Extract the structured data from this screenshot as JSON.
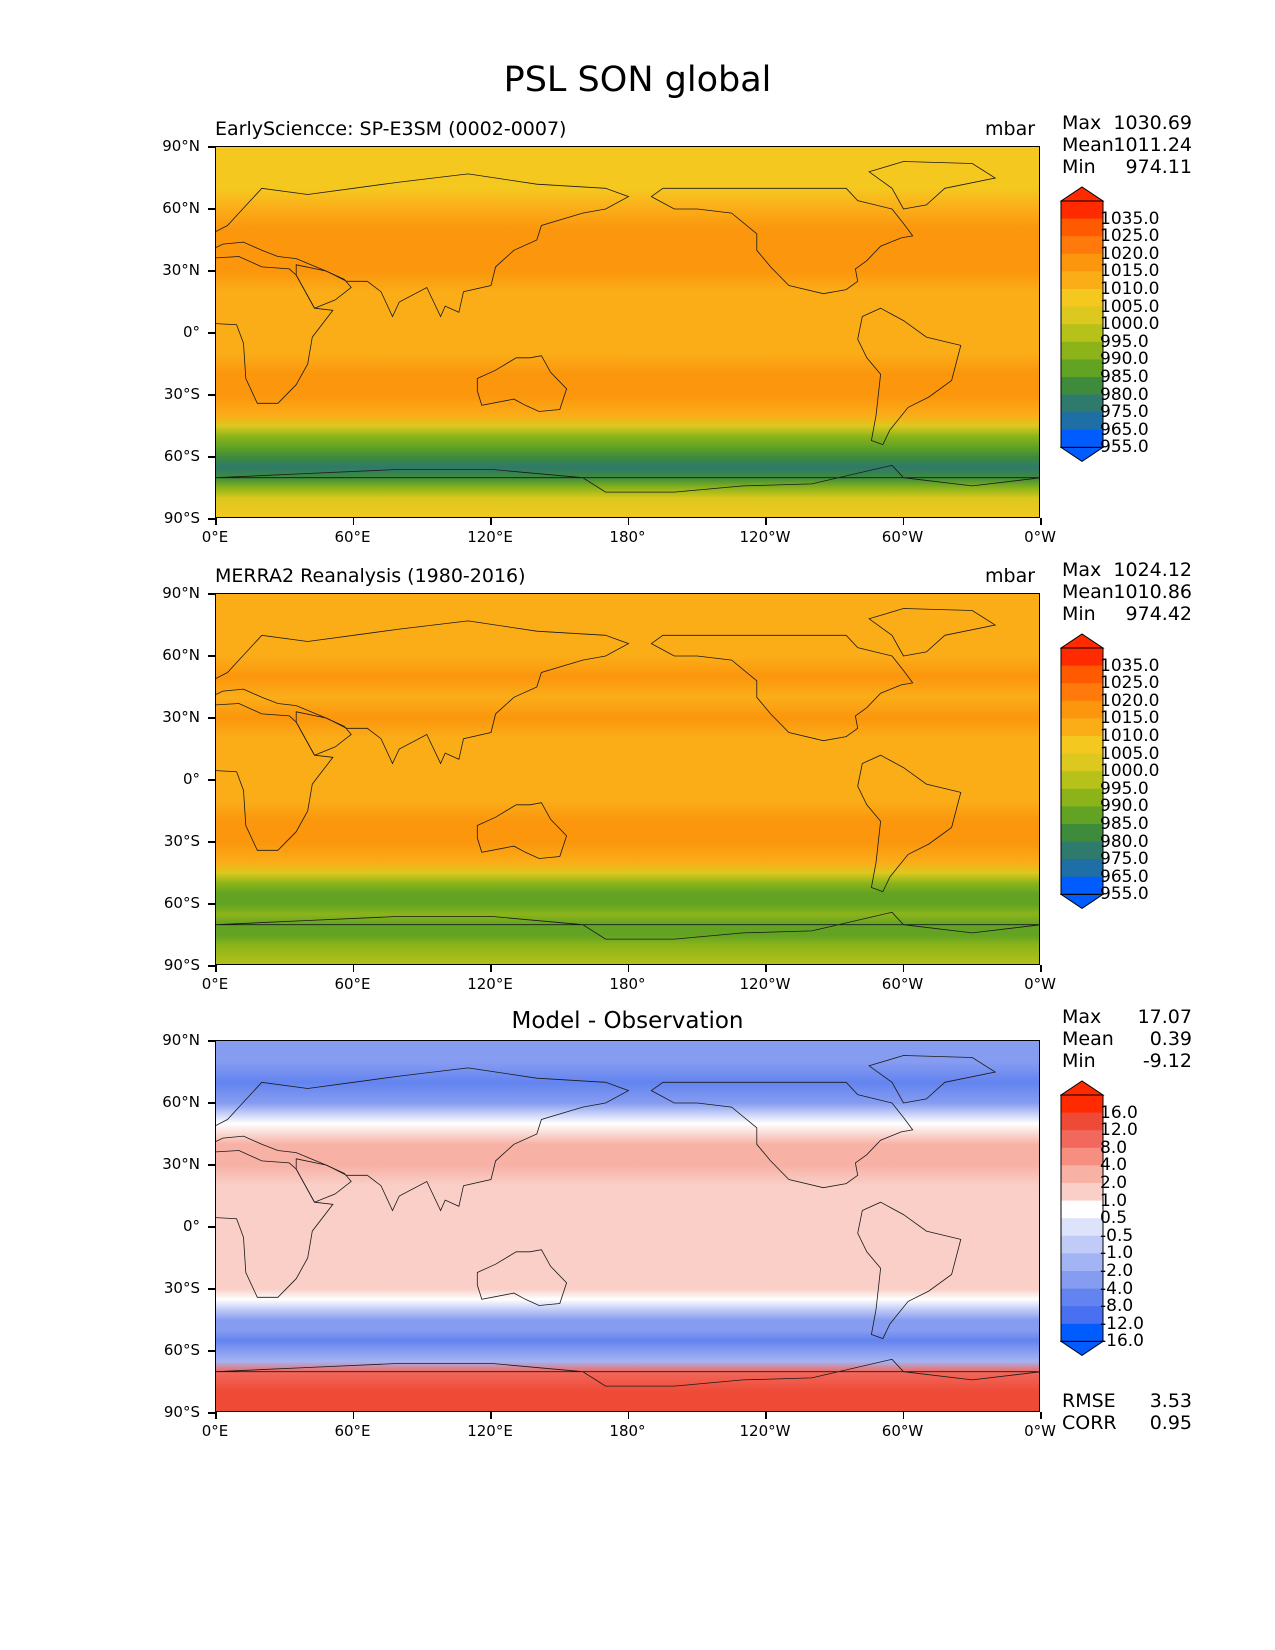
{
  "figure_title": "PSL SON global",
  "x_ticks": [
    "0°E",
    "60°E",
    "120°E",
    "180°",
    "120°W",
    "60°W",
    "0°W"
  ],
  "y_ticks": [
    "90°N",
    "60°N",
    "30°N",
    "0°",
    "30°S",
    "60°S",
    "90°S"
  ],
  "chart_data": [
    {
      "type": "heatmap",
      "title": "EarlySciencce: SP-E3SM (0002-0007)",
      "units": "mbar",
      "stats": {
        "max": "1030.69",
        "mean": "1011.24",
        "min": "974.11"
      },
      "colorbar_levels": [
        "1035.0",
        "1025.0",
        "1020.0",
        "1015.0",
        "1010.0",
        "1005.0",
        "1000.0",
        "995.0",
        "990.0",
        "985.0",
        "980.0",
        "975.0",
        "965.0",
        "955.0"
      ],
      "colors": [
        "#ff2a00",
        "#ff5a00",
        "#ff7a0a",
        "#fb960d",
        "#fbad18",
        "#f5c820",
        "#dcc81e",
        "#b6c21a",
        "#8cb41a",
        "#62a324",
        "#3e8b3c",
        "#2e7a6c",
        "#1e6fa6",
        "#005cff"
      ],
      "band_levels_by_latitude": [
        {
          "lat": 90,
          "level": 5
        },
        {
          "lat": 80,
          "level": 5
        },
        {
          "lat": 70,
          "level": 5
        },
        {
          "lat": 60,
          "level": 4
        },
        {
          "lat": 50,
          "level": 3
        },
        {
          "lat": 40,
          "level": 3
        },
        {
          "lat": 30,
          "level": 3
        },
        {
          "lat": 20,
          "level": 4
        },
        {
          "lat": 10,
          "level": 4
        },
        {
          "lat": 0,
          "level": 4
        },
        {
          "lat": -10,
          "level": 4
        },
        {
          "lat": -20,
          "level": 3
        },
        {
          "lat": -30,
          "level": 3
        },
        {
          "lat": -40,
          "level": 4
        },
        {
          "lat": -45,
          "level": 6
        },
        {
          "lat": -50,
          "level": 8
        },
        {
          "lat": -55,
          "level": 9
        },
        {
          "lat": -60,
          "level": 10
        },
        {
          "lat": -65,
          "level": 11
        },
        {
          "lat": -70,
          "level": 10
        },
        {
          "lat": -75,
          "level": 8
        },
        {
          "lat": -80,
          "level": 6
        },
        {
          "lat": -90,
          "level": 5
        }
      ]
    },
    {
      "type": "heatmap",
      "title": "MERRA2 Reanalysis (1980-2016)",
      "units": "mbar",
      "stats": {
        "max": "1024.12",
        "mean": "1010.86",
        "min": "974.42"
      },
      "colorbar_levels": [
        "1035.0",
        "1025.0",
        "1020.0",
        "1015.0",
        "1010.0",
        "1005.0",
        "1000.0",
        "995.0",
        "990.0",
        "985.0",
        "980.0",
        "975.0",
        "965.0",
        "955.0"
      ],
      "colors": [
        "#ff2a00",
        "#ff5a00",
        "#ff7a0a",
        "#fb960d",
        "#fbad18",
        "#f5c820",
        "#dcc81e",
        "#b6c21a",
        "#8cb41a",
        "#62a324",
        "#3e8b3c",
        "#2e7a6c",
        "#1e6fa6",
        "#005cff"
      ],
      "band_levels_by_latitude": [
        {
          "lat": 90,
          "level": 4
        },
        {
          "lat": 80,
          "level": 4
        },
        {
          "lat": 70,
          "level": 4
        },
        {
          "lat": 60,
          "level": 4
        },
        {
          "lat": 50,
          "level": 3
        },
        {
          "lat": 40,
          "level": 4
        },
        {
          "lat": 30,
          "level": 3
        },
        {
          "lat": 20,
          "level": 4
        },
        {
          "lat": 10,
          "level": 4
        },
        {
          "lat": 0,
          "level": 4
        },
        {
          "lat": -10,
          "level": 4
        },
        {
          "lat": -20,
          "level": 3
        },
        {
          "lat": -30,
          "level": 3
        },
        {
          "lat": -40,
          "level": 4
        },
        {
          "lat": -45,
          "level": 6
        },
        {
          "lat": -50,
          "level": 8
        },
        {
          "lat": -55,
          "level": 9
        },
        {
          "lat": -60,
          "level": 9
        },
        {
          "lat": -65,
          "level": 8
        },
        {
          "lat": -70,
          "level": 9
        },
        {
          "lat": -75,
          "level": 9
        },
        {
          "lat": -80,
          "level": 8
        },
        {
          "lat": -90,
          "level": 7
        }
      ]
    },
    {
      "type": "heatmap",
      "title": "Model - Observation",
      "units": "",
      "stats": {
        "max": "17.07",
        "mean": "0.39",
        "min": "-9.12",
        "rmse": "3.53",
        "corr": "0.95"
      },
      "colorbar_levels": [
        "16.0",
        "12.0",
        "8.0",
        "4.0",
        "2.0",
        "1.0",
        "0.5",
        "-0.5",
        "-1.0",
        "-2.0",
        "-4.0",
        "-8.0",
        "-12.0",
        "-16.0"
      ],
      "colors": [
        "#ff2a00",
        "#ee4a36",
        "#f2685c",
        "#f68f80",
        "#f7b1a5",
        "#f9cfc7",
        "#ffffff",
        "#dde3fa",
        "#c0cbf7",
        "#a3b4f4",
        "#869cf1",
        "#6384f0",
        "#4a70f2",
        "#005cff"
      ],
      "band_levels_by_latitude": [
        {
          "lat": 90,
          "level": 10
        },
        {
          "lat": 80,
          "level": 10
        },
        {
          "lat": 70,
          "level": 11
        },
        {
          "lat": 60,
          "level": 10
        },
        {
          "lat": 50,
          "level": 6
        },
        {
          "lat": 40,
          "level": 4
        },
        {
          "lat": 30,
          "level": 4
        },
        {
          "lat": 20,
          "level": 5
        },
        {
          "lat": 10,
          "level": 5
        },
        {
          "lat": 0,
          "level": 5
        },
        {
          "lat": -10,
          "level": 5
        },
        {
          "lat": -20,
          "level": 5
        },
        {
          "lat": -30,
          "level": 5
        },
        {
          "lat": -35,
          "level": 6
        },
        {
          "lat": -40,
          "level": 8
        },
        {
          "lat": -45,
          "level": 10
        },
        {
          "lat": -50,
          "level": 10
        },
        {
          "lat": -55,
          "level": 11
        },
        {
          "lat": -60,
          "level": 10
        },
        {
          "lat": -65,
          "level": 9
        },
        {
          "lat": -70,
          "level": 2
        },
        {
          "lat": -80,
          "level": 1
        },
        {
          "lat": -90,
          "level": 1
        }
      ]
    }
  ],
  "labels": {
    "max": "Max",
    "mean": "Mean",
    "min": "Min",
    "rmse": "RMSE",
    "corr": "CORR"
  }
}
